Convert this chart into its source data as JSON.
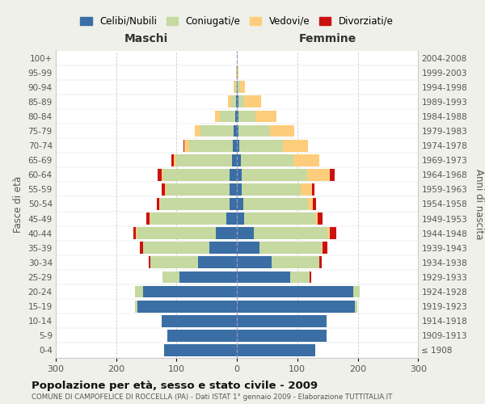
{
  "age_groups": [
    "100+",
    "95-99",
    "90-94",
    "85-89",
    "80-84",
    "75-79",
    "70-74",
    "65-69",
    "60-64",
    "55-59",
    "50-54",
    "45-49",
    "40-44",
    "35-39",
    "30-34",
    "25-29",
    "20-24",
    "15-19",
    "10-14",
    "5-9",
    "0-4"
  ],
  "birth_years": [
    "≤ 1908",
    "1909-1913",
    "1914-1918",
    "1919-1923",
    "1924-1928",
    "1929-1933",
    "1934-1938",
    "1939-1943",
    "1944-1948",
    "1949-1953",
    "1954-1958",
    "1959-1963",
    "1964-1968",
    "1969-1973",
    "1974-1978",
    "1979-1983",
    "1984-1988",
    "1989-1993",
    "1994-1998",
    "1999-2003",
    "2004-2008"
  ],
  "male_celibi": [
    0,
    0,
    0,
    2,
    3,
    5,
    7,
    8,
    12,
    12,
    12,
    18,
    35,
    45,
    65,
    95,
    155,
    165,
    125,
    115,
    120
  ],
  "male_coniugati": [
    0,
    1,
    3,
    8,
    25,
    55,
    72,
    92,
    110,
    105,
    115,
    125,
    130,
    110,
    78,
    28,
    14,
    4,
    0,
    0,
    0
  ],
  "male_vedovi": [
    0,
    0,
    2,
    5,
    8,
    10,
    8,
    5,
    3,
    2,
    2,
    2,
    2,
    1,
    0,
    0,
    0,
    0,
    0,
    0,
    0
  ],
  "male_divorziati": [
    0,
    0,
    0,
    0,
    0,
    0,
    2,
    4,
    6,
    5,
    3,
    5,
    5,
    5,
    3,
    0,
    0,
    0,
    0,
    0,
    0
  ],
  "female_nubili": [
    0,
    0,
    1,
    2,
    2,
    3,
    4,
    6,
    8,
    8,
    10,
    12,
    28,
    38,
    58,
    88,
    192,
    195,
    148,
    148,
    130
  ],
  "female_coniugate": [
    0,
    1,
    4,
    10,
    28,
    52,
    72,
    88,
    108,
    98,
    108,
    118,
    122,
    102,
    78,
    32,
    12,
    4,
    0,
    0,
    0
  ],
  "female_vedove": [
    0,
    2,
    8,
    28,
    35,
    40,
    42,
    42,
    38,
    18,
    8,
    4,
    4,
    2,
    0,
    0,
    0,
    0,
    0,
    0,
    0
  ],
  "female_divorziate": [
    0,
    0,
    0,
    0,
    0,
    0,
    0,
    0,
    8,
    5,
    5,
    8,
    10,
    8,
    5,
    3,
    0,
    0,
    0,
    0,
    0
  ],
  "colors": {
    "celibi": "#3A6EA5",
    "coniugati": "#C5D9A0",
    "vedovi": "#FDCD7B",
    "divorziati": "#CC1111"
  },
  "xlim": 300,
  "title": "Popolazione per età, sesso e stato civile - 2009",
  "subtitle": "COMUNE DI CAMPOFELICE DI ROCCELLA (PA) - Dati ISTAT 1° gennaio 2009 - Elaborazione TUTTITALIA.IT",
  "ylabel_left": "Fasce di età",
  "ylabel_right": "Anni di nascita",
  "legend_labels": [
    "Celibi/Nubili",
    "Coniugati/e",
    "Vedovi/e",
    "Divorziati/e"
  ],
  "bg_color": "#f0f0ea",
  "plot_bg": "#ffffff"
}
